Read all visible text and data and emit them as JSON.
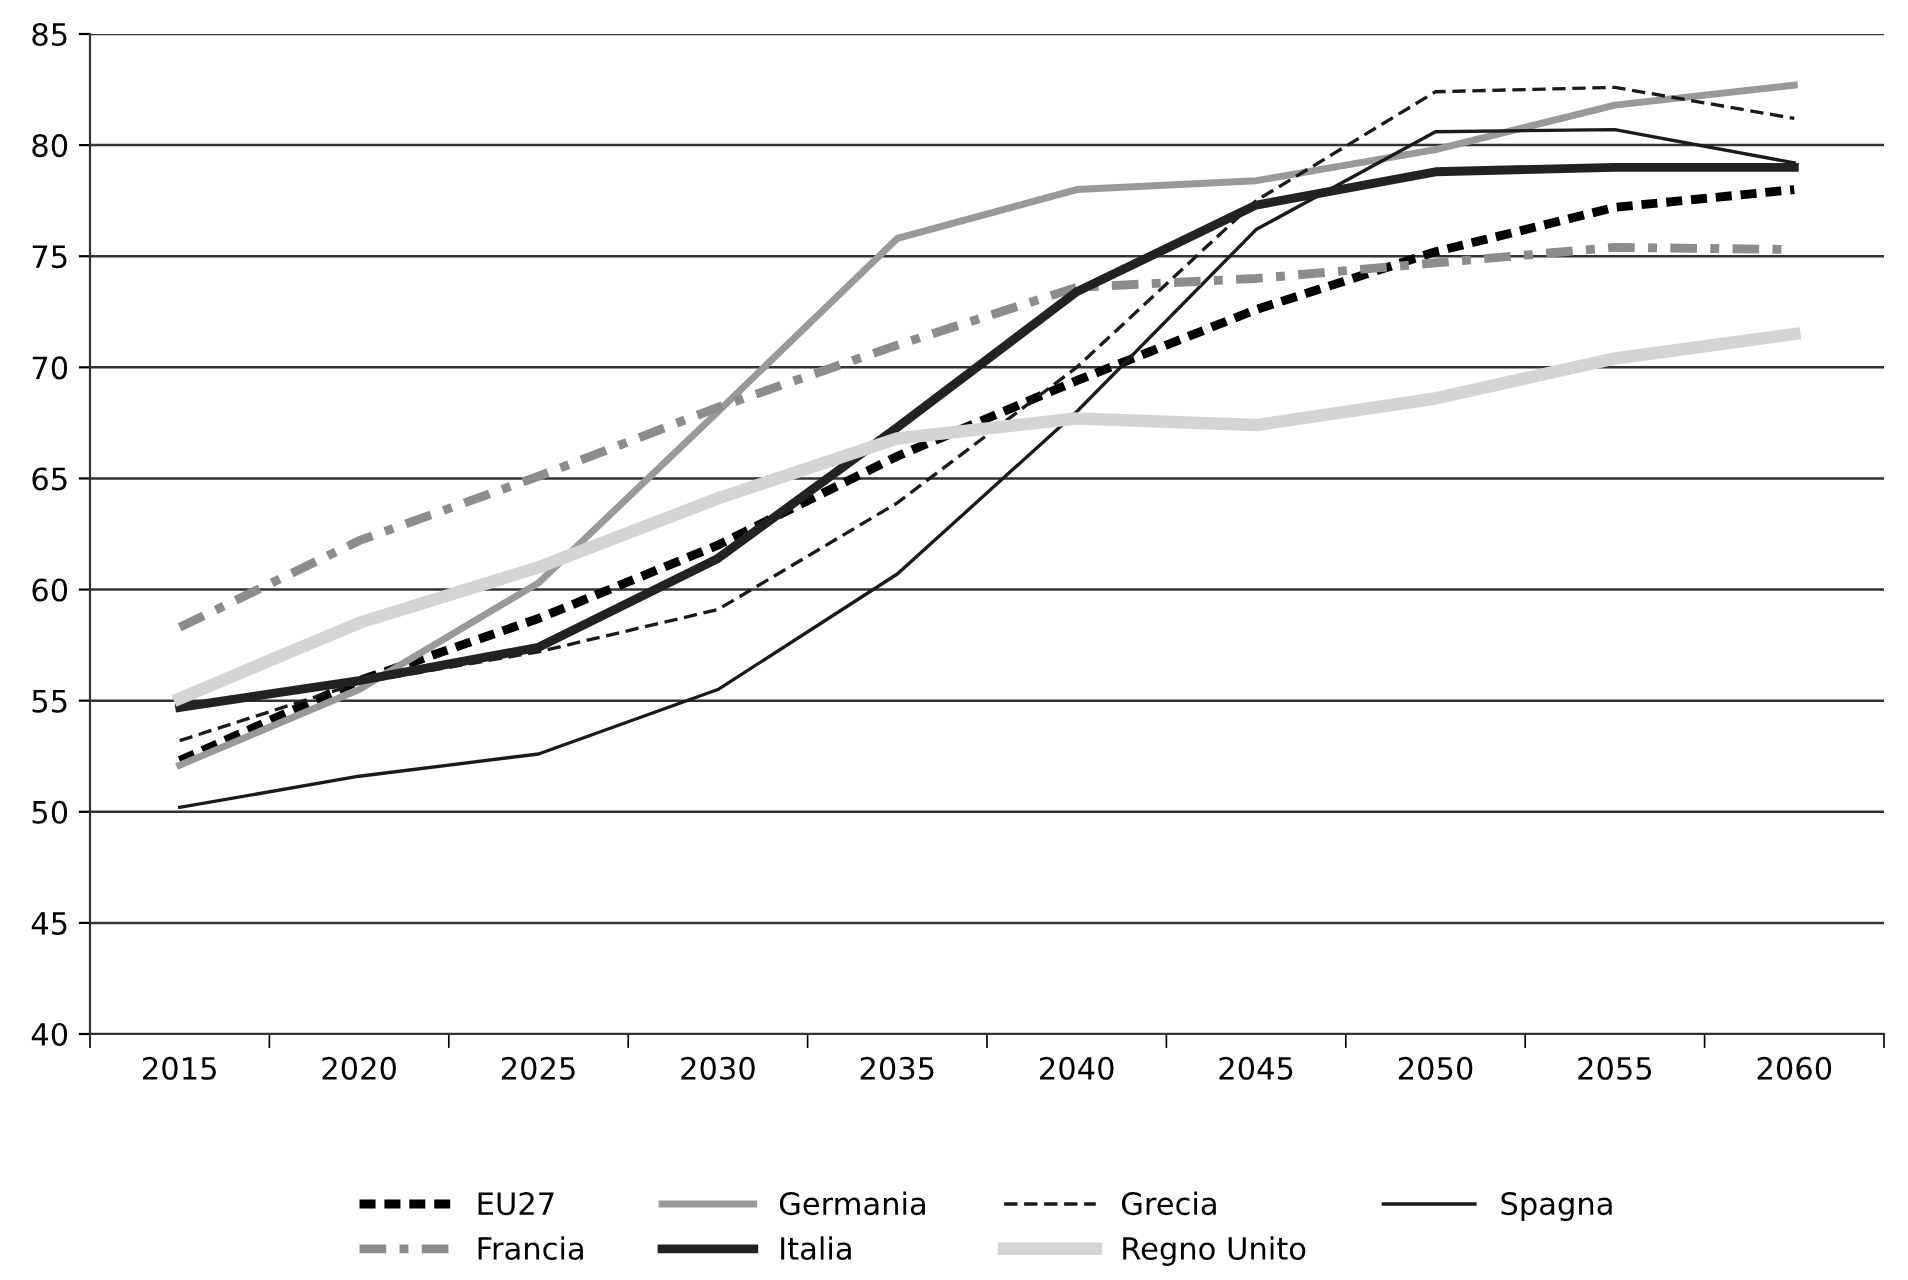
{
  "chart_data": {
    "type": "line",
    "categories": [
      "2015",
      "2020",
      "2025",
      "2030",
      "2035",
      "2040",
      "2045",
      "2050",
      "2055",
      "2060"
    ],
    "ylim": [
      40,
      85
    ],
    "yticks": [
      40,
      45,
      50,
      55,
      60,
      65,
      70,
      75,
      80,
      85
    ],
    "grid": "y",
    "legend": "bottom",
    "marker": "none",
    "series": [
      {
        "name": "EU27",
        "color": "#000000",
        "line_style": "dashed",
        "values": [
          52.3,
          55.9,
          58.7,
          62.0,
          66.0,
          69.4,
          72.6,
          75.2,
          77.2,
          78.0
        ]
      },
      {
        "name": "Germania",
        "color": "#999999",
        "line_style": "solid",
        "values": [
          52.1,
          55.5,
          60.3,
          68.0,
          75.8,
          78.0,
          78.4,
          79.8,
          81.8,
          82.7
        ]
      },
      {
        "name": "Grecia",
        "color": "#1a1a1a",
        "line_style": "dashed",
        "values": [
          53.2,
          55.8,
          57.2,
          59.1,
          63.9,
          70.0,
          77.5,
          82.4,
          82.6,
          81.2
        ]
      },
      {
        "name": "Spagna",
        "color": "#1a1a1a",
        "line_style": "solid",
        "values": [
          50.2,
          51.6,
          52.6,
          55.5,
          60.7,
          68.0,
          76.2,
          80.6,
          80.7,
          79.2
        ]
      },
      {
        "name": "Francia",
        "color": "#8c8c8c",
        "line_style": "dashdot",
        "values": [
          58.3,
          62.2,
          65.1,
          68.2,
          71.0,
          73.6,
          74.0,
          74.7,
          75.4,
          75.3
        ]
      },
      {
        "name": "Italia",
        "color": "#222222",
        "line_style": "solid",
        "values": [
          54.7,
          55.9,
          57.4,
          61.4,
          67.3,
          73.4,
          77.3,
          78.8,
          79.0,
          79.0
        ]
      },
      {
        "name": "Regno Unito",
        "color": "#d4d4d4",
        "line_style": "solid",
        "values": [
          55.1,
          58.5,
          61.0,
          64.1,
          66.8,
          67.7,
          67.4,
          68.6,
          70.4,
          71.5
        ]
      }
    ]
  }
}
